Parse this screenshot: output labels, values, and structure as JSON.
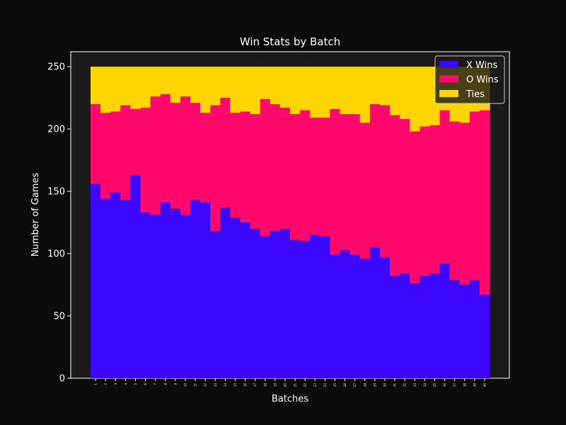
{
  "chart_data": {
    "type": "bar",
    "stacked": true,
    "title": "Win Stats by Batch",
    "xlabel": "Batches",
    "ylabel": "Number of Games",
    "ylim": [
      0,
      262
    ],
    "yticks": [
      0,
      50,
      100,
      150,
      200,
      250
    ],
    "categories": [
      "1",
      "2",
      "3",
      "4",
      "5",
      "6",
      "7",
      "8",
      "9",
      "10",
      "11",
      "12",
      "13",
      "14",
      "15",
      "16",
      "17",
      "18",
      "19",
      "20",
      "21",
      "22",
      "23",
      "24",
      "25",
      "26",
      "27",
      "28",
      "29",
      "30",
      "31",
      "32",
      "33",
      "34",
      "35",
      "36",
      "37",
      "38",
      "39",
      "40"
    ],
    "series": [
      {
        "name": "X Wins",
        "color": "#3d08ff",
        "values": [
          156,
          144,
          149,
          143,
          163,
          133,
          131,
          141,
          136,
          131,
          143,
          141,
          118,
          137,
          129,
          125,
          120,
          114,
          118,
          120,
          111,
          110,
          115,
          114,
          99,
          103,
          99,
          96,
          105,
          97,
          82,
          84,
          76,
          82,
          84,
          92,
          79,
          75,
          79,
          67
        ]
      },
      {
        "name": "O Wins",
        "color": "#ff0a6c",
        "values": [
          64,
          69,
          65,
          76,
          53,
          84,
          95,
          87,
          85,
          95,
          78,
          72,
          101,
          88,
          84,
          89,
          92,
          110,
          102,
          97,
          101,
          105,
          94,
          95,
          117,
          109,
          113,
          109,
          115,
          122,
          129,
          124,
          122,
          120,
          119,
          123,
          127,
          130,
          135,
          148
        ]
      },
      {
        "name": "Ties",
        "color": "#ffd500",
        "values": [
          30,
          37,
          36,
          31,
          34,
          33,
          24,
          22,
          29,
          24,
          29,
          37,
          31,
          25,
          37,
          36,
          38,
          26,
          30,
          33,
          38,
          35,
          41,
          41,
          34,
          38,
          38,
          45,
          30,
          31,
          39,
          42,
          52,
          48,
          47,
          35,
          44,
          45,
          36,
          35
        ]
      }
    ],
    "legend": "top-right",
    "grid": false,
    "colors": {
      "page_bg": "#0b0b0b",
      "plot_bg": "#1a1a1a",
      "axis": "#ffffff"
    }
  }
}
